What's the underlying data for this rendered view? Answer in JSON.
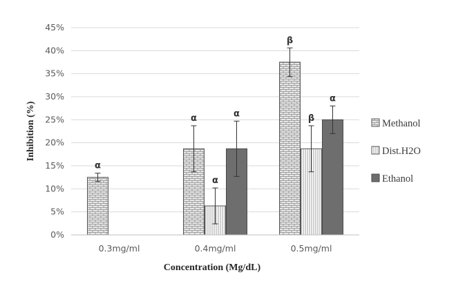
{
  "chart_data": {
    "type": "bar",
    "title": "",
    "xlabel": "Concentration (Mg/dL)",
    "ylabel": "Inhibition (%)",
    "ylim": [
      0,
      45
    ],
    "ytick_step": 5,
    "y_tick_suffix": "%",
    "grid": true,
    "legend_position": "right",
    "categories": [
      "0.3mg/ml",
      "0.4mg/ml",
      "0.5mg/ml"
    ],
    "series": [
      {
        "name": "Methanol",
        "pattern": "brick",
        "fill": "#e6e6e6",
        "stroke": "#555555",
        "values": [
          12.5,
          18.7,
          37.5
        ],
        "errors": [
          0.9,
          5.0,
          3.1
        ],
        "labels": [
          "α",
          "α",
          "β"
        ]
      },
      {
        "name": "Dist.H2O",
        "pattern": "vertical",
        "fill": "#ffffff",
        "stroke": "#555555",
        "values": [
          null,
          6.3,
          18.7
        ],
        "errors": [
          null,
          3.9,
          5.0
        ],
        "labels": [
          "",
          "α",
          "β"
        ]
      },
      {
        "name": "Ethanol",
        "pattern": "solid",
        "fill": "#6e6e6e",
        "stroke": "#4a4a4a",
        "values": [
          null,
          18.7,
          25.0
        ],
        "errors": [
          null,
          6.0,
          3.0
        ],
        "labels": [
          "",
          "α",
          "α"
        ]
      }
    ]
  }
}
